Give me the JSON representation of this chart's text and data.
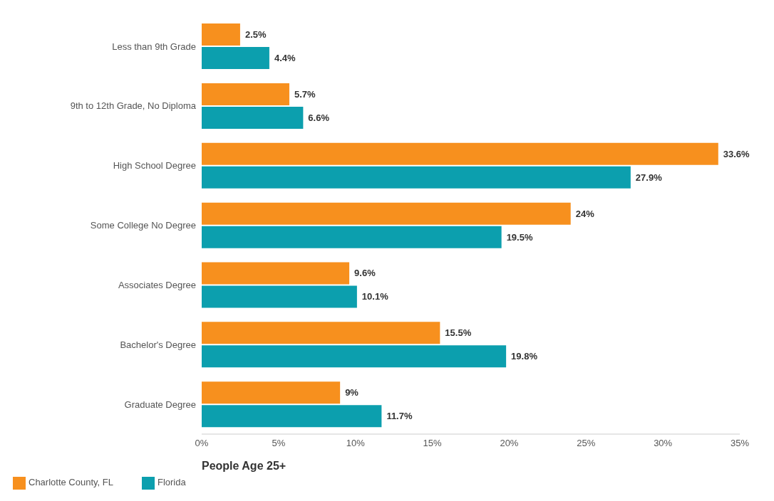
{
  "chart_data": {
    "type": "bar",
    "orientation": "horizontal",
    "xlabel": "People Age 25+",
    "categories": [
      "Less than 9th Grade",
      "9th to 12th Grade, No Diploma",
      "High School Degree",
      "Some College No Degree",
      "Associates Degree",
      "Bachelor's Degree",
      "Graduate Degree"
    ],
    "series": [
      {
        "name": "Charlotte County, FL",
        "color": "#f7901e",
        "values": [
          2.5,
          5.7,
          33.6,
          24,
          9.6,
          15.5,
          9
        ],
        "value_labels": [
          "2.5%",
          "5.7%",
          "33.6%",
          "24%",
          "9.6%",
          "15.5%",
          "9%"
        ]
      },
      {
        "name": "Florida",
        "color": "#0c9fae",
        "values": [
          4.4,
          6.6,
          27.9,
          19.5,
          10.1,
          19.8,
          11.7
        ],
        "value_labels": [
          "4.4%",
          "6.6%",
          "27.9%",
          "19.5%",
          "10.1%",
          "19.8%",
          "11.7%"
        ]
      }
    ],
    "xlim": [
      0,
      35
    ],
    "xticks": [
      {
        "value": 0,
        "label": "0%"
      },
      {
        "value": 5,
        "label": "5%"
      },
      {
        "value": 10,
        "label": "10%"
      },
      {
        "value": 15,
        "label": "15%"
      },
      {
        "value": 20,
        "label": "20%"
      },
      {
        "value": 25,
        "label": "25%"
      },
      {
        "value": 30,
        "label": "30%"
      },
      {
        "value": 35,
        "label": "35%"
      }
    ],
    "grid": false,
    "legend": "bottom left"
  }
}
